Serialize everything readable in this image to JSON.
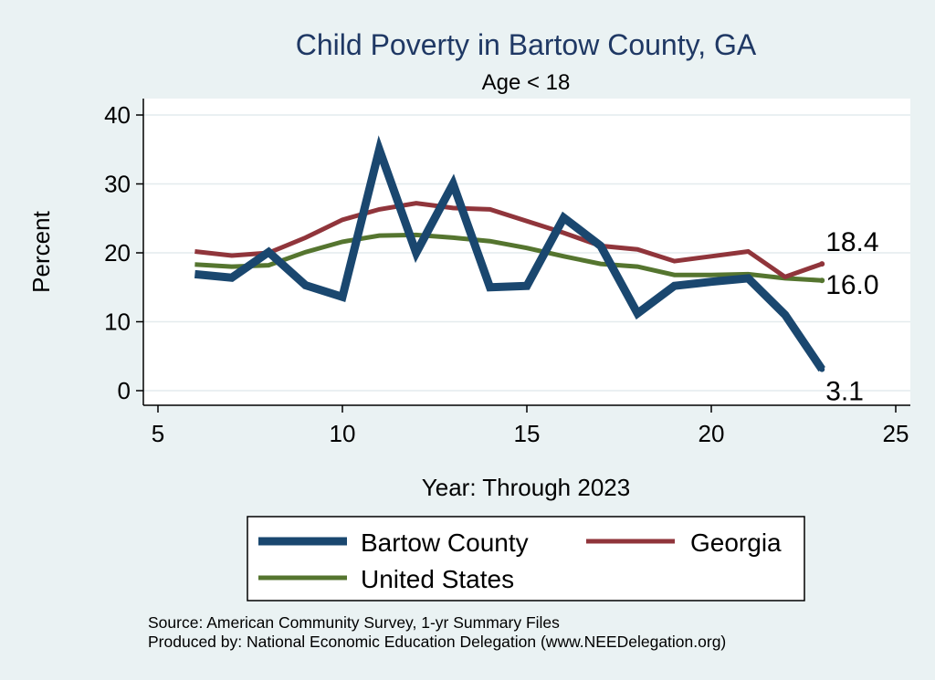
{
  "chart_data": {
    "type": "line",
    "title": "Child Poverty in Bartow County, GA",
    "subtitle": "Age < 18",
    "xlabel": "Year: Through 2023",
    "ylabel": "Percent",
    "xlim": [
      5,
      25
    ],
    "ylim": [
      0,
      40
    ],
    "x_ticks": [
      5,
      10,
      15,
      20,
      25
    ],
    "y_ticks": [
      0,
      10,
      20,
      30,
      40
    ],
    "grid": true,
    "legend_position": "bottom",
    "series": [
      {
        "name": "Bartow County",
        "color": "#1a476f",
        "x": [
          6,
          7,
          8,
          9,
          10,
          11,
          12,
          13,
          14,
          15,
          16,
          17,
          18,
          19,
          20,
          21,
          22,
          23
        ],
        "y": [
          16.9,
          16.4,
          20.1,
          15.3,
          13.6,
          35.0,
          20.0,
          30.0,
          15.0,
          15.2,
          25.1,
          21.0,
          11.2,
          15.2,
          15.8,
          16.3,
          11.0,
          3.1
        ]
      },
      {
        "name": "Georgia",
        "color": "#90353b",
        "x": [
          6,
          7,
          8,
          9,
          10,
          11,
          12,
          13,
          14,
          15,
          16,
          17,
          18,
          19,
          20,
          21,
          22,
          23
        ],
        "y": [
          20.2,
          19.6,
          20.0,
          22.2,
          24.8,
          26.3,
          27.2,
          26.5,
          26.3,
          24.6,
          22.9,
          21.0,
          20.5,
          18.8,
          19.5,
          20.2,
          16.5,
          18.4
        ]
      },
      {
        "name": "United States",
        "color": "#55752f",
        "x": [
          6,
          7,
          8,
          9,
          10,
          11,
          12,
          13,
          14,
          15,
          16,
          17,
          18,
          19,
          20,
          21,
          22,
          23
        ],
        "y": [
          18.3,
          18.0,
          18.2,
          20.1,
          21.6,
          22.5,
          22.6,
          22.2,
          21.7,
          20.7,
          19.5,
          18.4,
          18.0,
          16.8,
          16.8,
          16.9,
          16.3,
          16.0
        ]
      }
    ],
    "end_labels": [
      {
        "series": "Georgia",
        "text": "18.4"
      },
      {
        "series": "United States",
        "text": "16.0"
      },
      {
        "series": "Bartow County",
        "text": "3.1"
      }
    ]
  },
  "footer": {
    "source": "Source: American Community Survey, 1-yr Summary Files",
    "produced_by": "Produced by: National Economic Education Delegation (www.NEEDelegation.org)"
  }
}
